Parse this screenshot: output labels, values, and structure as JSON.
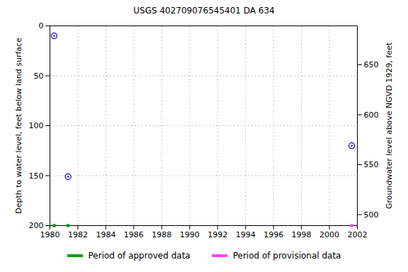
{
  "chart_data": {
    "type": "scatter",
    "title": "USGS 402709076545401 DA   634",
    "x": [
      1980.3,
      1981.3,
      2001.6
    ],
    "values": [
      10,
      151,
      120
    ],
    "color": "#0000cc",
    "marker": "circle",
    "ylabel": "Depth to water level, feet below land surface",
    "y2label": "Groundwater level above NGVD 1929, feet",
    "xlim": [
      1980,
      2002
    ],
    "xticks": [
      1980,
      1982,
      1984,
      1986,
      1988,
      1990,
      1992,
      1994,
      1996,
      1998,
      2000,
      2002
    ],
    "ylim": [
      200,
      0
    ],
    "yticks": [
      0,
      50,
      100,
      150,
      200
    ],
    "y2lim": [
      489,
      689
    ],
    "y2ticks": [
      500,
      550,
      600,
      650
    ],
    "grid": true,
    "periods": [
      {
        "name": "Period of approved data",
        "color": "#00a000",
        "x": [
          1980.3,
          1981.3
        ]
      },
      {
        "name": "Period of provisional data",
        "color": "#ff44ff",
        "x": [
          2001.6
        ]
      }
    ]
  }
}
